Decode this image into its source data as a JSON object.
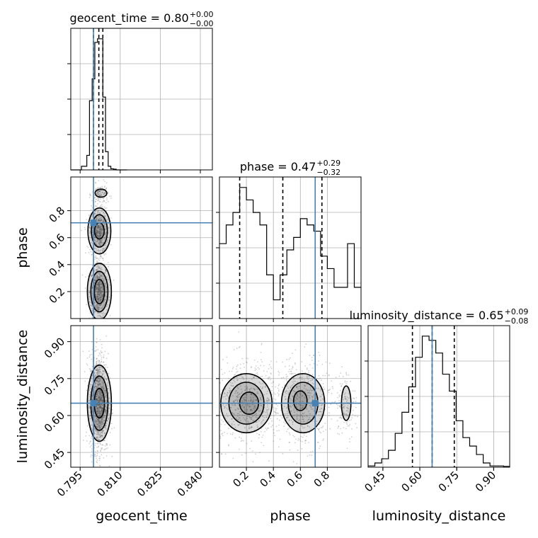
{
  "chart_data": {
    "type": "corner",
    "parameters": [
      "geocent_time",
      "phase",
      "luminosity_distance"
    ],
    "truths": {
      "geocent_time": 0.8,
      "phase": 0.71,
      "luminosity_distance": 0.65
    },
    "summaries": [
      {
        "param": "geocent_time",
        "prefix": "geocent_time = 0.80",
        "sup": "+0.00",
        "sub": "−0.00",
        "median": 0.802,
        "lower": 0.8,
        "upper": 0.8035
      },
      {
        "param": "phase",
        "prefix": "phase = 0.47",
        "sup": "+0.29",
        "sub": "−0.32",
        "median": 0.47,
        "lower": 0.15,
        "upper": 0.76
      },
      {
        "param": "luminosity_distance",
        "prefix": "luminosity_distance = 0.65",
        "sup": "+0.09",
        "sub": "−0.08",
        "median": 0.65,
        "lower": 0.57,
        "upper": 0.74
      }
    ],
    "axes": {
      "geocent_time": {
        "range": [
          0.7915,
          0.8445
        ],
        "ticks": [
          "0.795",
          "0.810",
          "0.825",
          "0.840"
        ],
        "tick_values": [
          0.795,
          0.81,
          0.825,
          0.84
        ],
        "label": "geocent_time"
      },
      "phase": {
        "range": [
          0.0,
          1.05
        ],
        "ticks": [
          "0.2",
          "0.4",
          "0.6",
          "0.8"
        ],
        "tick_values": [
          0.2,
          0.4,
          0.6,
          0.8
        ],
        "label": "phase"
      },
      "luminosity_distance": {
        "range": [
          0.39,
          0.965
        ],
        "ticks": [
          "0.45",
          "0.60",
          "0.75",
          "0.90"
        ],
        "tick_values": [
          0.45,
          0.6,
          0.75,
          0.9
        ],
        "label": "luminosity_distance"
      }
    },
    "histograms": {
      "geocent_time": {
        "edges": [
          0.7915,
          0.7925,
          0.7935,
          0.7945,
          0.7955,
          0.7965,
          0.7975,
          0.7985,
          0.7995,
          0.8005,
          0.8015,
          0.8025,
          0.8035,
          0.8045,
          0.8055,
          0.8065,
          0.8075,
          0.8085,
          0.8095,
          0.8105,
          0.8115,
          0.8125
        ],
        "counts": [
          0,
          0,
          0,
          0,
          1,
          1,
          4,
          19,
          25,
          35,
          36,
          36,
          20,
          5,
          1,
          0.3,
          0.2,
          0,
          0,
          0,
          0
        ]
      },
      "phase": {
        "edges": [
          0.0,
          0.05,
          0.1,
          0.15,
          0.2,
          0.25,
          0.3,
          0.35,
          0.4,
          0.45,
          0.5,
          0.55,
          0.6,
          0.65,
          0.7,
          0.75,
          0.8,
          0.85,
          0.9,
          0.95,
          1.0,
          1.05
        ],
        "counts": [
          12,
          15,
          17,
          21,
          19,
          17,
          15,
          7,
          3,
          7,
          11,
          13,
          16,
          15,
          14,
          10,
          8,
          5,
          5,
          12,
          5
        ]
      },
      "luminosity_distance": {
        "edges": [
          0.39,
          0.4175,
          0.445,
          0.4725,
          0.5,
          0.5275,
          0.555,
          0.5825,
          0.61,
          0.6375,
          0.665,
          0.6925,
          0.72,
          0.7475,
          0.775,
          0.8025,
          0.83,
          0.8575,
          0.885,
          0.9125,
          0.94,
          0.965
        ],
        "counts": [
          0.3,
          1,
          2,
          4,
          8,
          13,
          19,
          26,
          31,
          30,
          27,
          22,
          18,
          11,
          7,
          5,
          3,
          1,
          0.3,
          0.3,
          0.2
        ]
      }
    }
  }
}
